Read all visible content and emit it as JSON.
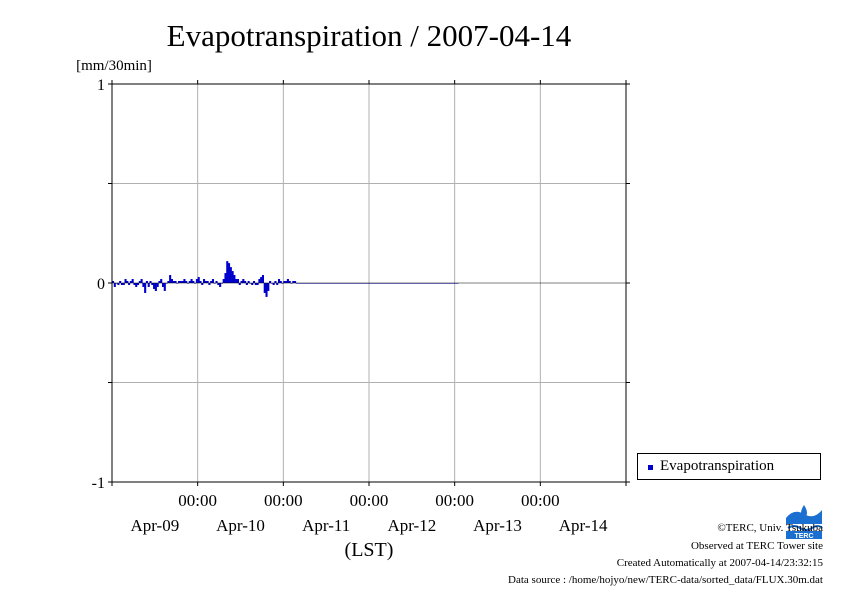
{
  "chart_data": {
    "type": "bar",
    "title": "Evapotranspiration / 2007-04-14",
    "ylabel": "[mm/30min]",
    "xlabel": "(LST)",
    "ylim": [
      -1,
      1
    ],
    "yticks": [
      "1",
      "0",
      "-1"
    ],
    "xlim": [
      0,
      6
    ],
    "time_ticks": [
      "00:00",
      "00:00",
      "00:00",
      "00:00",
      "00:00"
    ],
    "date_labels": [
      "Apr-09",
      "Apr-10",
      "Apr-11",
      "Apr-12",
      "Apr-13",
      "Apr-14"
    ],
    "grid": true,
    "legend_position": "right-bottom",
    "series": [
      {
        "name": "Evapotranspiration",
        "color": "#0000cc",
        "start_day": 0,
        "step_days": 0.0208333,
        "values": [
          0.01,
          -0.02,
          0.0,
          -0.01,
          0.01,
          -0.01,
          -0.01,
          0.02,
          0.01,
          -0.01,
          0.01,
          0.02,
          -0.01,
          -0.02,
          -0.01,
          0.01,
          0.02,
          -0.02,
          -0.05,
          0.01,
          -0.02,
          0.01,
          -0.01,
          -0.03,
          -0.04,
          -0.02,
          0.01,
          0.02,
          -0.02,
          -0.04,
          0.0,
          0.01,
          0.04,
          0.02,
          0.01,
          0.01,
          0.0,
          0.01,
          0.01,
          0.01,
          0.02,
          0.01,
          0.0,
          0.01,
          0.02,
          0.01,
          0.0,
          0.02,
          0.03,
          0.01,
          -0.01,
          0.02,
          0.01,
          0.01,
          -0.01,
          0.01,
          0.02,
          0.0,
          0.01,
          -0.01,
          -0.02,
          0.0,
          0.02,
          0.05,
          0.11,
          0.1,
          0.08,
          0.06,
          0.04,
          0.02,
          0.02,
          -0.01,
          0.01,
          0.02,
          0.01,
          -0.01,
          0.01,
          0.0,
          -0.01,
          0.01,
          -0.01,
          -0.01,
          0.02,
          0.03,
          0.04,
          -0.05,
          -0.07,
          -0.04,
          0.01,
          0.0,
          -0.01,
          0.01,
          -0.01,
          0.02,
          0.01,
          0.0,
          0.01,
          0.01,
          0.02,
          0.01,
          0.0,
          0.01,
          0.01,
          0.0,
          0.0,
          0.0,
          0.0,
          0.0,
          0.0,
          0.0,
          0.0,
          0.0,
          0.0,
          0.0,
          0.0,
          0.0,
          0.0,
          0.0,
          0.0,
          0.0,
          0.0,
          0.0,
          0.0,
          0.0,
          0.0,
          0.0,
          0.0,
          0.0,
          0.0,
          0.0,
          0.0,
          0.0,
          0.0,
          0.0,
          0.0,
          0.0,
          0.0,
          0.0,
          0.0,
          0.0,
          0.0,
          0.0,
          0.0,
          0.0,
          0.0,
          0.0,
          0.0,
          0.0,
          0.0,
          0.0,
          0.0,
          0.0,
          0.0,
          0.0,
          0.0,
          0.0,
          0.0,
          0.0,
          0.0,
          0.0,
          0.0,
          0.0,
          0.0,
          0.0,
          0.0,
          0.0,
          0.0,
          0.0,
          0.0,
          0.0,
          0.0,
          0.0,
          0.0,
          0.0,
          0.0,
          0.0,
          0.0,
          0.0,
          0.0,
          0.0,
          0.0,
          0.0,
          0.0,
          0.0,
          0.0,
          0.0,
          0.0,
          0.0,
          0.0,
          0.0,
          0.0,
          0.0,
          0.0,
          0.0
        ]
      }
    ]
  },
  "credits": {
    "copyright": "©TERC, Univ. Tsukuba",
    "observed": "Observed at TERC Tower site",
    "created": "Created Automatically at 2007-04-14/23:32:15",
    "source": "Data source : /home/hojyo/new/TERC-data/sorted_data/FLUX.30m.dat"
  },
  "logo": {
    "text": "TERC",
    "color": "#1a6fd0"
  }
}
